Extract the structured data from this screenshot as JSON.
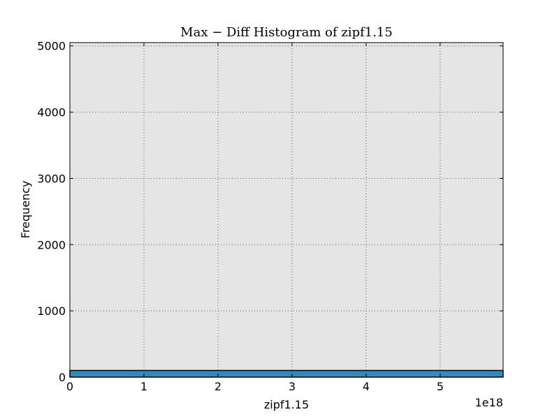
{
  "chart_data": {
    "type": "bar",
    "title": "Max − Diff Histogram of zipf1.15",
    "xlabel": "zipf1.15",
    "ylabel": "Frequency",
    "x_offset_label": "1e18",
    "xlim": [
      0,
      5.85
    ],
    "ylim": [
      0,
      5050
    ],
    "x_ticks": [
      0,
      1,
      2,
      3,
      4,
      5
    ],
    "y_ticks": [
      0,
      1000,
      2000,
      3000,
      4000,
      5000
    ],
    "grid": true,
    "bins": [
      {
        "x0": 0,
        "x1": 5.85,
        "value": 100
      }
    ],
    "colors": {
      "bar": "#348ABD",
      "plot_background": "#E5E5E5",
      "grid": "#555555"
    }
  }
}
